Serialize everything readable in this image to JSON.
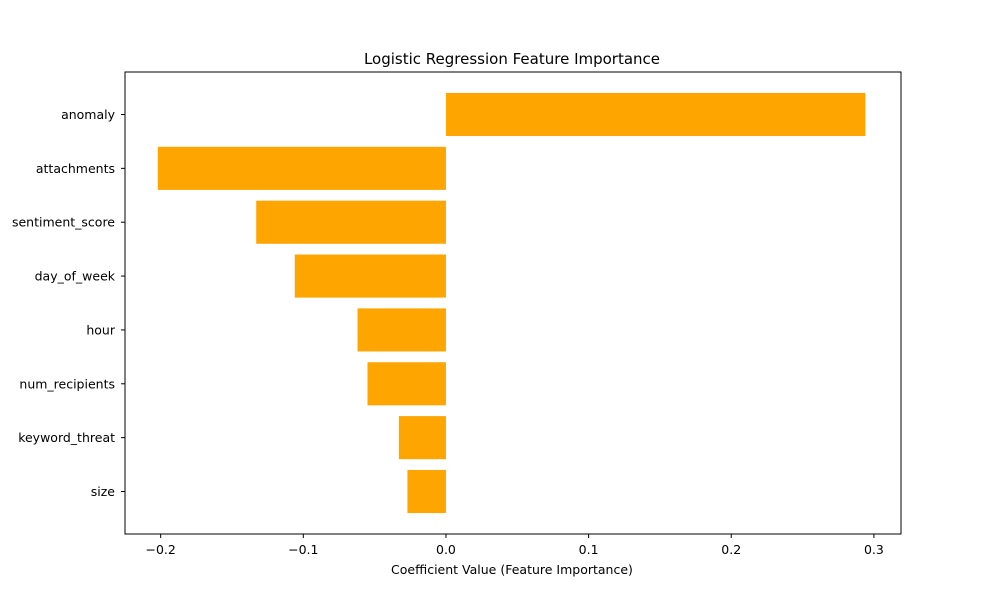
{
  "chart_data": {
    "type": "bar",
    "orientation": "horizontal",
    "title": "Logistic Regression Feature Importance",
    "xlabel": "Coefficient Value (Feature Importance)",
    "ylabel": "",
    "categories": [
      "anomaly",
      "attachments",
      "sentiment_score",
      "day_of_week",
      "hour",
      "num_recipients",
      "keyword_threat",
      "size"
    ],
    "values": [
      0.294,
      -0.202,
      -0.133,
      -0.106,
      -0.062,
      -0.055,
      -0.033,
      -0.027
    ],
    "xlim": [
      -0.225,
      0.319
    ],
    "xticks": [
      -0.2,
      -0.1,
      0.0,
      0.1,
      0.2,
      0.3
    ],
    "xtick_labels": [
      "−0.2",
      "−0.1",
      "0.0",
      "0.1",
      "0.2",
      "0.3"
    ],
    "bar_color": "#ffa500",
    "grid": false,
    "legend": "none"
  }
}
